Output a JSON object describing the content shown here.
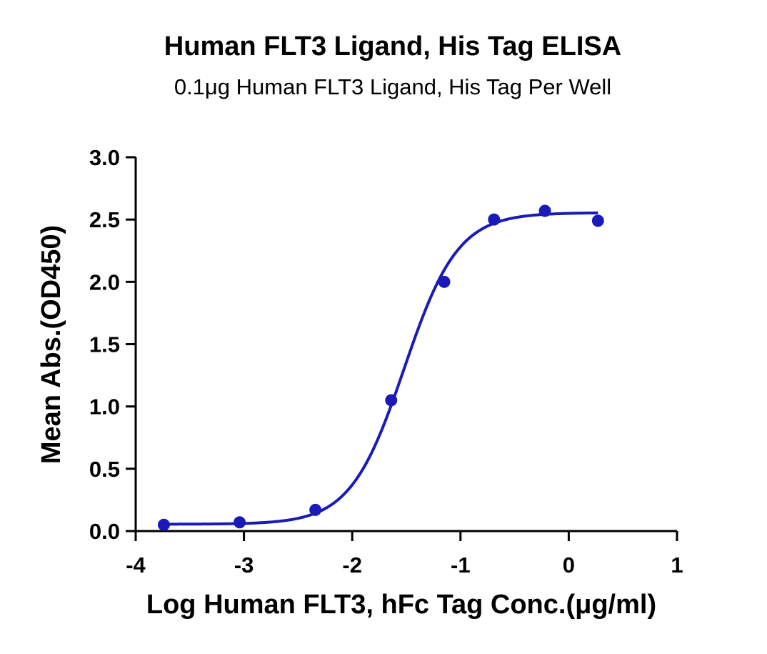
{
  "chart_data": {
    "type": "scatter",
    "title": "Human FLT3 Ligand, His Tag ELISA",
    "subtitle": "0.1μg Human FLT3 Ligand, His Tag Per Well",
    "xlabel": "Log Human FLT3, hFc Tag Conc.(μg/ml)",
    "ylabel": "Mean Abs.(OD450)",
    "xlim": [
      -4,
      1
    ],
    "ylim": [
      0,
      3.0
    ],
    "x_ticks": [
      "-4",
      "-3",
      "-2",
      "-1",
      "0",
      "1"
    ],
    "y_ticks": [
      "0.0",
      "0.5",
      "1.0",
      "1.5",
      "2.0",
      "2.5",
      "3.0"
    ],
    "series": [
      {
        "x": [
          -3.74,
          -3.04,
          -2.34,
          -1.64,
          -1.15,
          -0.69,
          -0.22,
          0.27
        ],
        "y": [
          0.05,
          0.07,
          0.17,
          1.05,
          2.0,
          2.5,
          2.57,
          2.49
        ]
      }
    ],
    "fit": {
      "type": "4PL",
      "bottom": 0.055,
      "top": 2.555,
      "log_ec50": -1.52,
      "hill_slope": 1.75
    },
    "color": "#1a1ab8",
    "grid": false,
    "legend": "none"
  }
}
